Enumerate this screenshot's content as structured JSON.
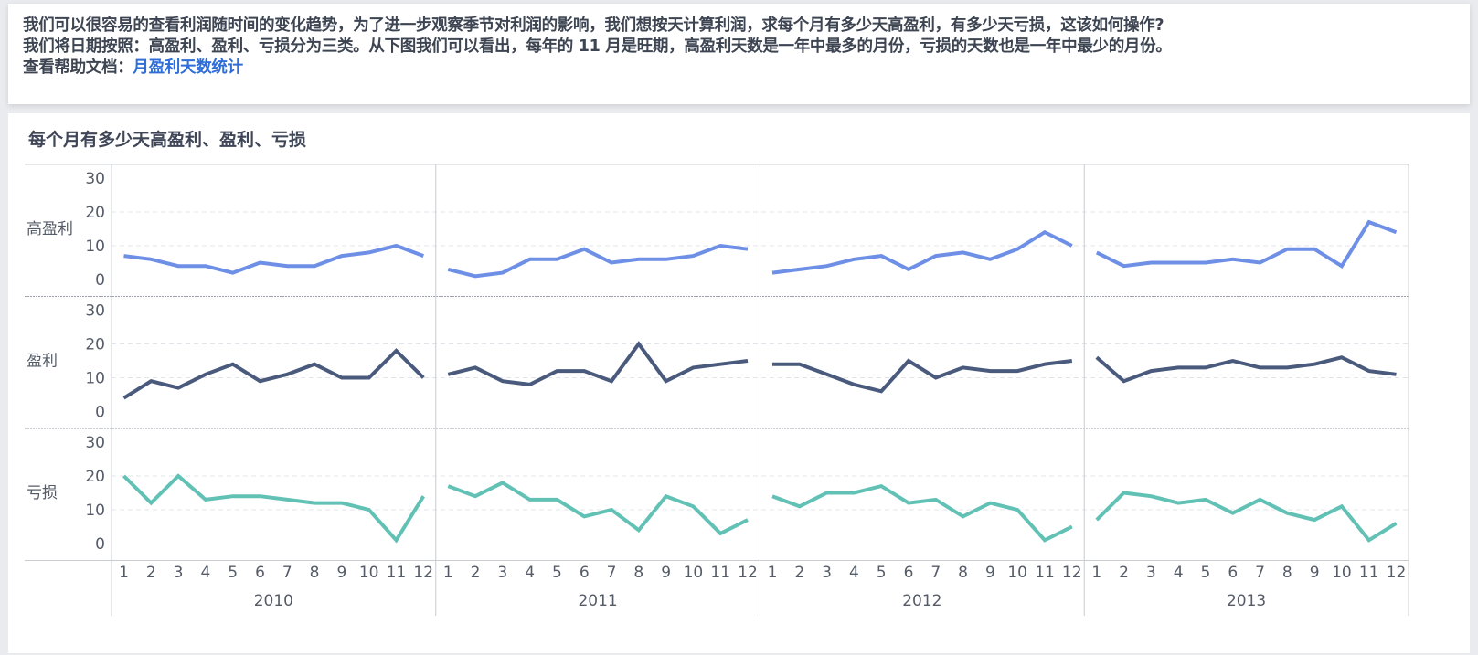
{
  "intro": {
    "line1": "我们可以很容易的查看利润随时间的变化趋势，为了进一步观察季节对利润的影响，我们想按天计算利润，求每个月有多少天高盈利，有多少天亏损，这该如何操作?",
    "line2": "我们将日期按照：高盈利、盈利、亏损分为三类。从下图我们可以看出，每年的 11 月是旺期，高盈利天数是一年中最多的月份，亏损的天数也是一年中最少的月份。",
    "help_label": "查看帮助文档：",
    "help_link": "月盈利天数统计"
  },
  "colors": {
    "high_profit": "#6e8fe6",
    "profit": "#4a5a7d",
    "loss": "#62c1b5"
  },
  "chart_data": {
    "type": "line",
    "title": "每个月有多少天高盈利、盈利、亏损",
    "years": [
      "2010",
      "2011",
      "2012",
      "2013"
    ],
    "months": [
      "1",
      "2",
      "3",
      "4",
      "5",
      "6",
      "7",
      "8",
      "9",
      "10",
      "11",
      "12"
    ],
    "y_ticks": [
      "0",
      "10",
      "20",
      "30"
    ],
    "ylim": [
      0,
      30
    ],
    "grid": true,
    "rows": [
      {
        "name": "高盈利",
        "color": "#6e8fe6",
        "values": {
          "2010": [
            7,
            6,
            4,
            4,
            2,
            5,
            4,
            4,
            7,
            8,
            10,
            7
          ],
          "2011": [
            3,
            1,
            2,
            6,
            6,
            9,
            5,
            6,
            6,
            7,
            10,
            9
          ],
          "2012": [
            2,
            3,
            4,
            6,
            7,
            3,
            7,
            8,
            6,
            9,
            14,
            10
          ],
          "2013": [
            8,
            4,
            5,
            5,
            5,
            6,
            5,
            9,
            9,
            4,
            17,
            14
          ]
        }
      },
      {
        "name": "盈利",
        "color": "#4a5a7d",
        "values": {
          "2010": [
            4,
            9,
            7,
            11,
            14,
            9,
            11,
            14,
            10,
            10,
            18,
            10
          ],
          "2011": [
            11,
            13,
            9,
            8,
            12,
            12,
            9,
            20,
            9,
            13,
            14,
            15
          ],
          "2012": [
            14,
            14,
            11,
            8,
            6,
            15,
            10,
            13,
            12,
            12,
            14,
            15
          ],
          "2013": [
            16,
            9,
            12,
            13,
            13,
            15,
            13,
            13,
            14,
            16,
            12,
            11
          ]
        }
      },
      {
        "name": "亏损",
        "color": "#62c1b5",
        "values": {
          "2010": [
            20,
            12,
            20,
            13,
            14,
            14,
            13,
            12,
            12,
            10,
            1,
            14
          ],
          "2011": [
            17,
            14,
            18,
            13,
            13,
            8,
            10,
            4,
            14,
            11,
            3,
            7
          ],
          "2012": [
            14,
            11,
            15,
            15,
            17,
            12,
            13,
            8,
            12,
            10,
            1,
            5
          ],
          "2013": [
            7,
            15,
            14,
            12,
            13,
            9,
            13,
            9,
            7,
            11,
            1,
            6
          ]
        }
      }
    ]
  }
}
